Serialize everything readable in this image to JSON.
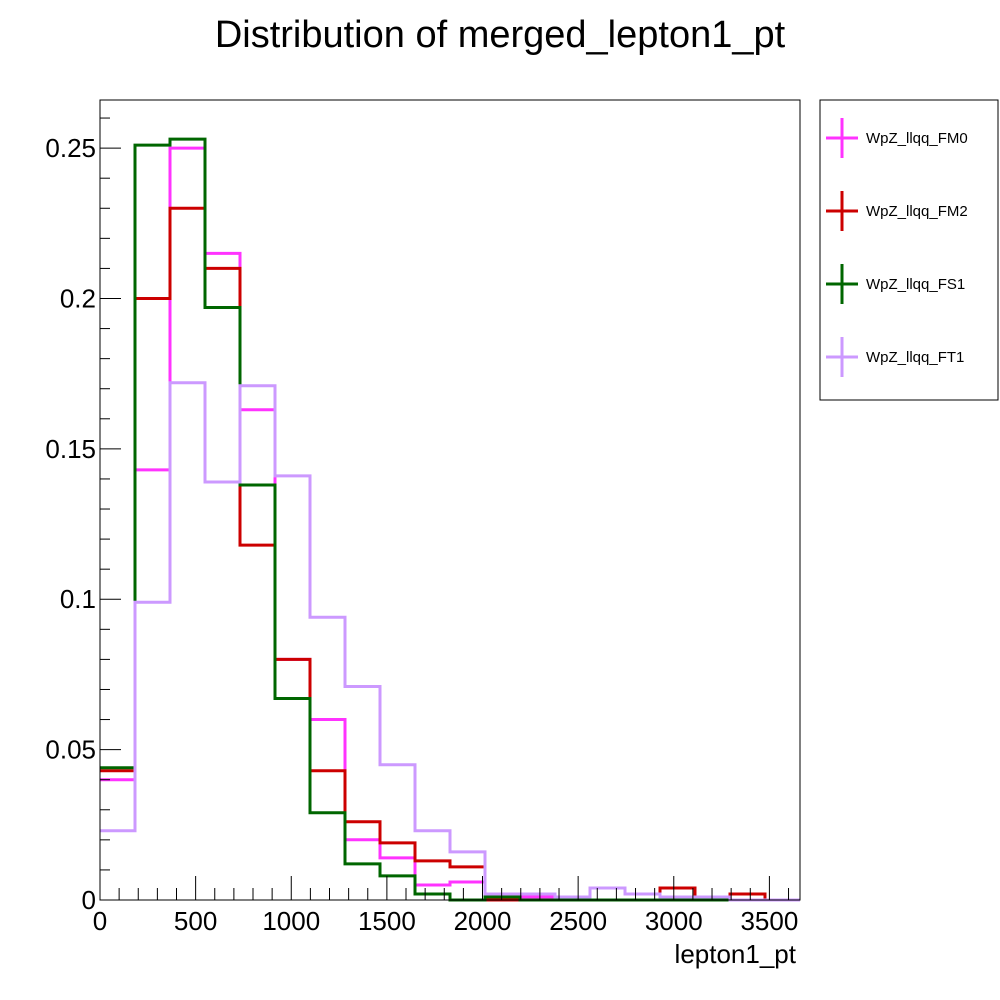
{
  "chart_data": {
    "type": "line",
    "step": true,
    "title": "Distribution of merged_lepton1_pt",
    "xlabel": "lepton1_pt",
    "ylabel": "",
    "xlim": [
      0,
      3660
    ],
    "ylim": [
      0,
      0.266
    ],
    "bin_edges": [
      0,
      183,
      366,
      549,
      732,
      915,
      1098,
      1281,
      1464,
      1647,
      1830,
      2013,
      2196,
      2379,
      2562,
      2745,
      2928,
      3111,
      3294,
      3477,
      3660
    ],
    "x_ticks": [
      0,
      500,
      1000,
      1500,
      2000,
      2500,
      3000,
      3500
    ],
    "x_tick_labels": [
      "0",
      "500",
      "1000",
      "1500",
      "2000",
      "2500",
      "3000",
      "3500"
    ],
    "y_ticks": [
      0,
      0.05,
      0.1,
      0.15,
      0.2,
      0.25
    ],
    "y_tick_labels": [
      "0",
      "0.05",
      "0.1",
      "0.15",
      "0.2",
      "0.25"
    ],
    "grid": false,
    "legend_position": "right-outside-top",
    "series": [
      {
        "name": "WpZ_llqq_FM0",
        "color": "#ff33ff",
        "values": [
          0.04,
          0.143,
          0.25,
          0.215,
          0.163,
          0.08,
          0.06,
          0.02,
          0.014,
          0.005,
          0.006,
          0.001,
          0.001,
          0.001,
          0.0,
          0.0,
          0.0,
          0.0,
          0.0,
          0.0
        ]
      },
      {
        "name": "WpZ_llqq_FM2",
        "color": "#cc0000",
        "values": [
          0.043,
          0.2,
          0.23,
          0.21,
          0.118,
          0.08,
          0.043,
          0.026,
          0.019,
          0.013,
          0.011,
          0.0,
          0.0,
          0.0,
          0.0,
          0.0,
          0.004,
          0.0,
          0.002,
          0.0
        ]
      },
      {
        "name": "WpZ_llqq_FS1",
        "color": "#006600",
        "values": [
          0.044,
          0.251,
          0.253,
          0.197,
          0.138,
          0.067,
          0.029,
          0.012,
          0.008,
          0.002,
          0.0,
          0.001,
          0.0,
          0.0,
          0.0,
          0.0,
          0.0,
          0.0,
          0.0,
          0.0
        ]
      },
      {
        "name": "WpZ_llqq_FT1",
        "color": "#cc99ff",
        "values": [
          0.023,
          0.099,
          0.172,
          0.139,
          0.171,
          0.141,
          0.094,
          0.071,
          0.045,
          0.023,
          0.016,
          0.002,
          0.002,
          0.001,
          0.004,
          0.002,
          0.001,
          0.001,
          0.0,
          0.0
        ]
      }
    ]
  }
}
